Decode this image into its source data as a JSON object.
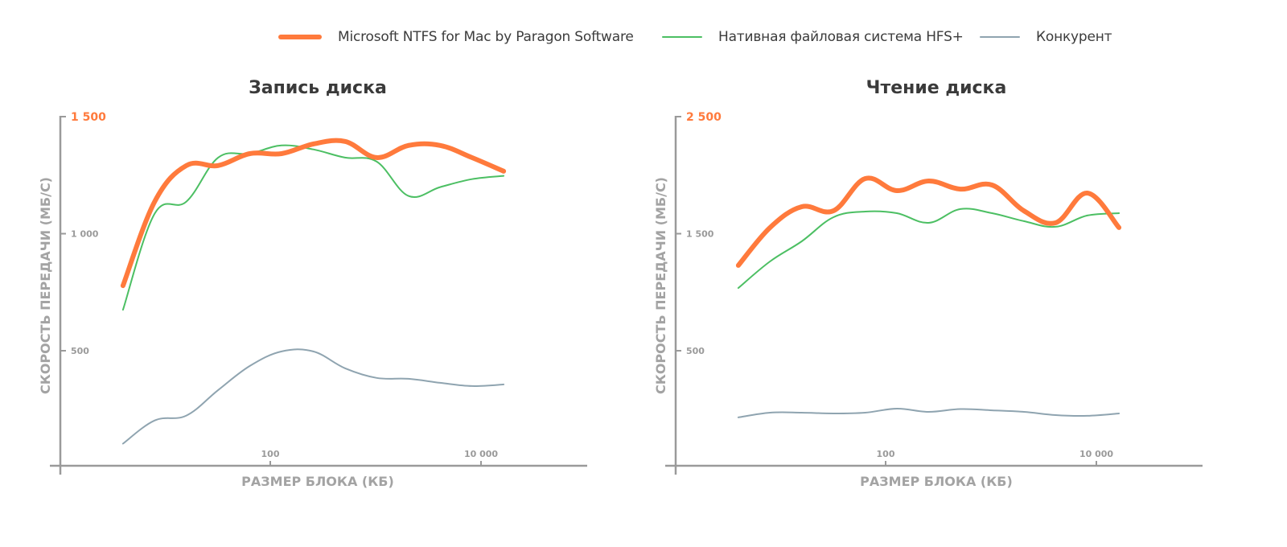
{
  "legend": [
    {
      "name": "Microsoft NTFS for Mac by Paragon Software",
      "color": "#ff7a3c",
      "key": "paragon"
    },
    {
      "name": "Нативная файловая система HFS+",
      "color": "#4cbf63",
      "key": "hfs"
    },
    {
      "name": "Конкурент",
      "color": "#8fa4b0",
      "key": "competitor"
    }
  ],
  "chart_data": [
    {
      "type": "line",
      "title": "Запись диска",
      "xlabel": "РАЗМЕР БЛОКА (КБ)",
      "ylabel": "СКОРОСТЬ ПЕРЕДАЧИ (МБ/С)",
      "xscale": "log",
      "x_ticks": [
        {
          "value": 100,
          "label": "100"
        },
        {
          "value": 10000,
          "label": "10 000"
        }
      ],
      "y_ticks": [
        {
          "value": 1500,
          "label": "1 500",
          "highlight": true
        },
        {
          "value": 1000,
          "label": "1 000"
        },
        {
          "value": 500,
          "label": "500"
        }
      ],
      "ylim": [
        0,
        1500
      ],
      "x": [
        4,
        8,
        16,
        32,
        64,
        128,
        256,
        512,
        1024,
        2048,
        4096,
        8192,
        16384
      ],
      "series": [
        {
          "name": "Конкурент",
          "key": "competitor",
          "values": [
            103,
            202,
            223,
            332,
            435,
            497,
            497,
            425,
            384,
            380,
            363,
            349,
            356
          ]
        },
        {
          "name": "Нативная файловая система HFS+",
          "key": "hfs",
          "values": [
            675,
            1086,
            1137,
            1325,
            1342,
            1377,
            1360,
            1325,
            1308,
            1161,
            1199,
            1233,
            1247
          ]
        },
        {
          "name": "Microsoft NTFS for Mac by Paragon Software",
          "key": "paragon",
          "values": [
            778,
            1137,
            1291,
            1291,
            1342,
            1342,
            1383,
            1394,
            1325,
            1377,
            1377,
            1325,
            1267
          ]
        }
      ]
    },
    {
      "type": "line",
      "title": "Чтение диска",
      "xlabel": "РАЗМЕР БЛОКА (КБ)",
      "ylabel": "СКОРОСТЬ ПЕРЕДАЧИ (МБ/С)",
      "xscale": "log",
      "x_ticks": [
        {
          "value": 100,
          "label": "100"
        },
        {
          "value": 10000,
          "label": "10 000"
        }
      ],
      "y_ticks": [
        {
          "value": 2500,
          "label": "2 500",
          "highlight": true
        },
        {
          "value": 1500,
          "label": "1 500"
        },
        {
          "value": 500,
          "label": "500"
        }
      ],
      "ylim": [
        -480,
        2500
      ],
      "x": [
        4,
        8,
        16,
        32,
        64,
        128,
        256,
        512,
        1024,
        2048,
        4096,
        8192,
        16384
      ],
      "series": [
        {
          "name": "Конкурент",
          "key": "competitor",
          "values": [
            -70,
            -29,
            -29,
            -36,
            -29,
            5,
            -22,
            2,
            -9,
            -22,
            -50,
            -56,
            -36
          ]
        },
        {
          "name": "Нативная файловая система HFS+",
          "key": "hfs",
          "values": [
            1036,
            1263,
            1435,
            1641,
            1689,
            1675,
            1593,
            1710,
            1675,
            1607,
            1559,
            1655,
            1675
          ]
        },
        {
          "name": "Microsoft NTFS for Mac by Paragon Software",
          "key": "paragon",
          "values": [
            1229,
            1552,
            1730,
            1696,
            1971,
            1868,
            1950,
            1881,
            1916,
            1696,
            1593,
            1847,
            1552
          ]
        }
      ]
    }
  ]
}
